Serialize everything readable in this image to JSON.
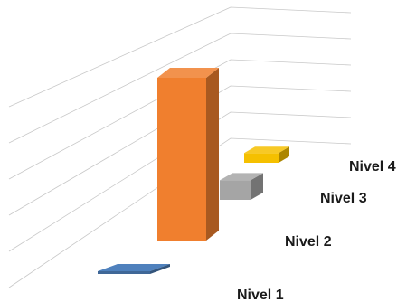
{
  "chart_data": {
    "type": "bar",
    "variant": "3d-columns",
    "title": "",
    "xlabel": "",
    "ylabel": "",
    "categories": [
      "Nivel 1",
      "Nivel 2",
      "Nivel 3",
      "Nivel 4"
    ],
    "values": [
      0.5,
      100,
      12,
      6
    ],
    "colors": [
      "#4f81bd",
      "#f07f2e",
      "#a5a5a5",
      "#f5c000"
    ],
    "grid": true,
    "legend": "none",
    "axis_labels_shown": false
  }
}
